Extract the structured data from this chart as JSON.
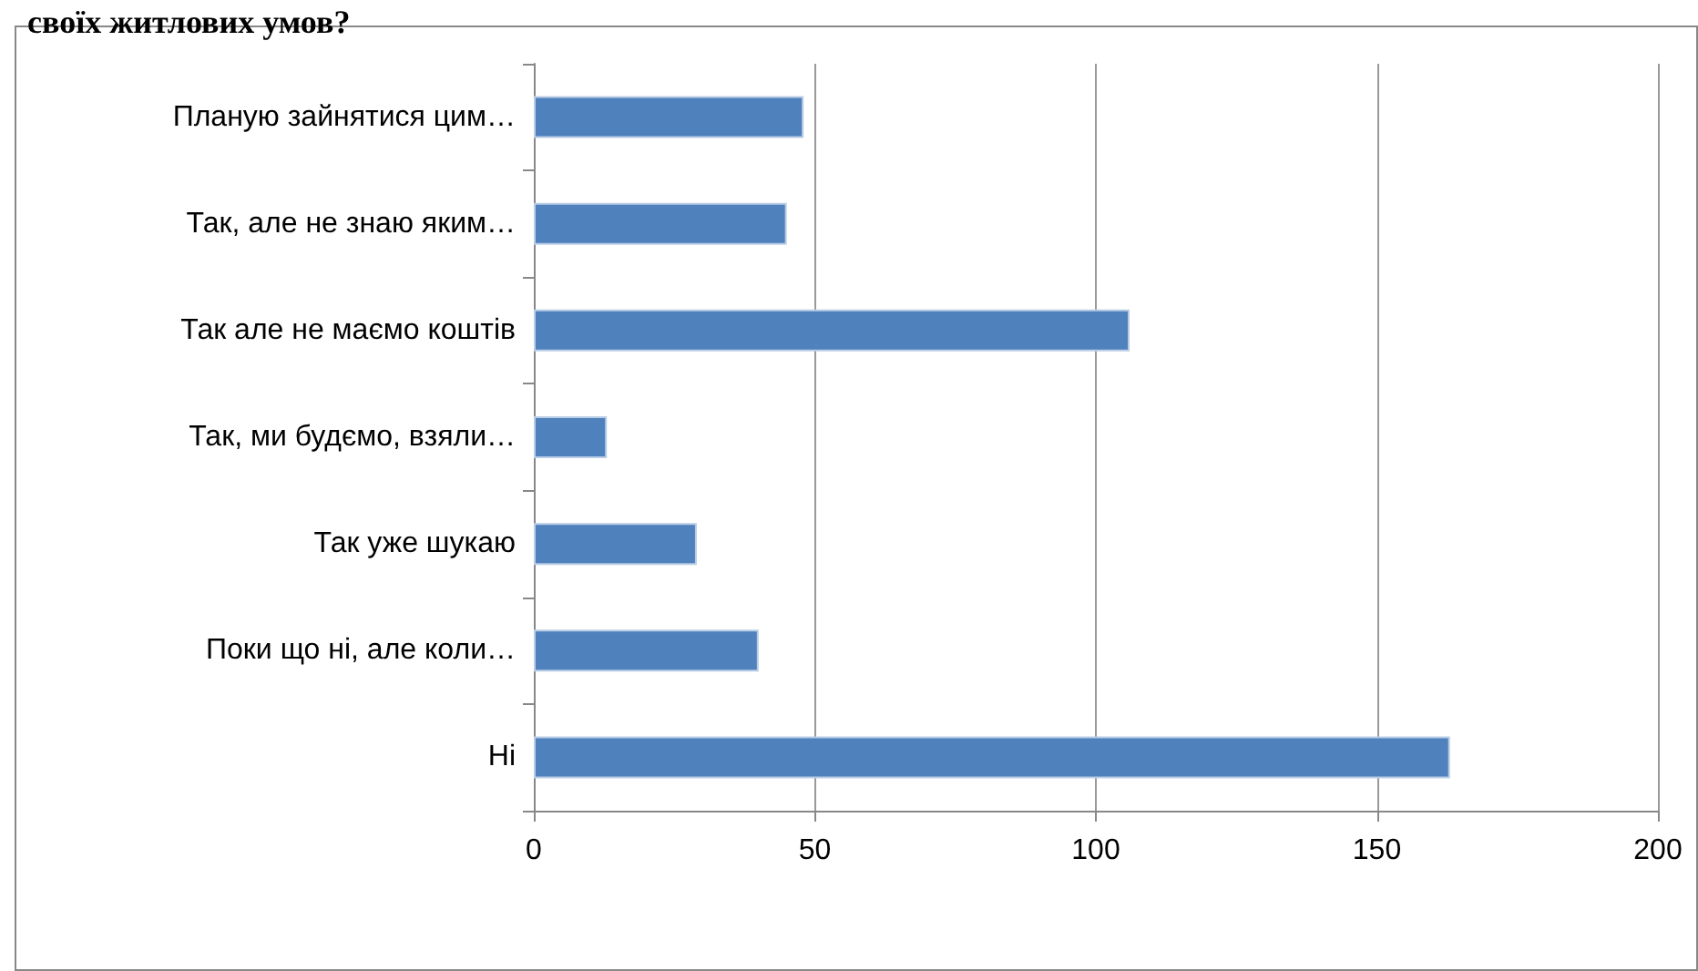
{
  "chart_data": {
    "type": "bar",
    "orientation": "horizontal",
    "title": "своїх житлових умов?",
    "categories": [
      "Планую зайнятися цим…",
      "Так, але не знаю яким…",
      "Так але не маємо коштів",
      "Так, ми будємо, взяли…",
      "Так уже шукаю",
      "Поки що ні, але коли…",
      "Ні"
    ],
    "values": [
      48,
      45,
      106,
      13,
      29,
      40,
      163
    ],
    "color": "#4f81bd",
    "xlim": [
      0,
      200
    ],
    "xticks": [
      0,
      50,
      100,
      150,
      200
    ],
    "grid": "x"
  }
}
